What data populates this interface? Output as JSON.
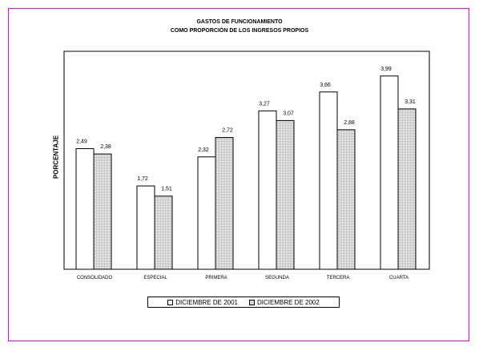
{
  "chart_data": {
    "type": "bar",
    "title_line1": "GASTOS DE FUNCIONAMIENTO",
    "title_line2": "COMO PROPORCIÓN DE LOS INGRESOS PROPIOS",
    "ylabel": "PORCENTAJE",
    "xlabel": "",
    "categories": [
      "CONSOLIDADO",
      "ESPECIAL",
      "PRIMERA",
      "SEGUNDA",
      "TERCERA",
      "CUARTA"
    ],
    "series": [
      {
        "name": "DICIEMBRE DE 2001",
        "values": [
          2.49,
          1.72,
          2.32,
          3.27,
          3.66,
          3.99
        ],
        "labels": [
          "2,49",
          "1,72",
          "2,32",
          "3,27",
          "3,66",
          "3,99"
        ],
        "fill": "#ffffff"
      },
      {
        "name": "DICIEMBRE DE 2002",
        "values": [
          2.38,
          1.51,
          2.72,
          3.07,
          2.88,
          3.31
        ],
        "labels": [
          "2,38",
          "1,51",
          "2,72",
          "3,07",
          "2,88",
          "3,31"
        ],
        "fill": "dotted-gray"
      }
    ],
    "ylim": [
      0,
      4.5
    ],
    "grid": false,
    "legend_position": "bottom"
  },
  "colors": {
    "frame_border": "#ff00ff",
    "bar_outline": "#000000",
    "bar2_fill": "#e8e8e8"
  }
}
